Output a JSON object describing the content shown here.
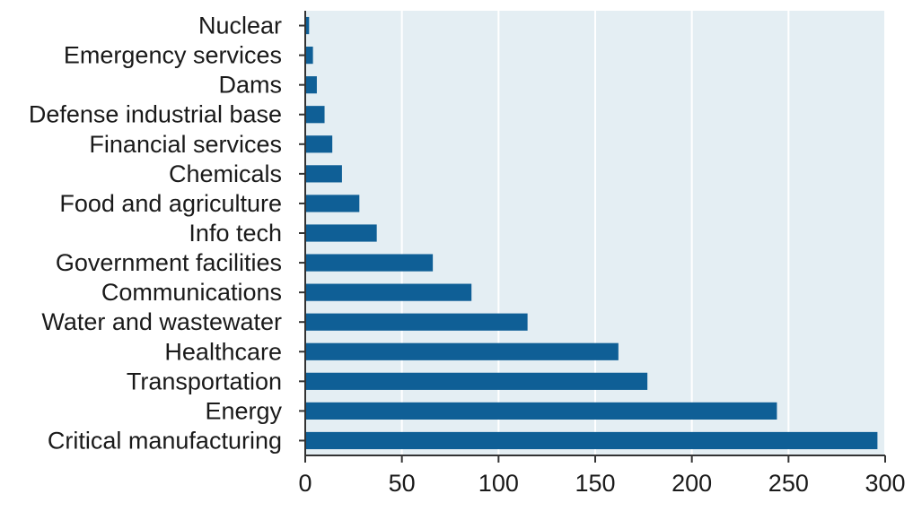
{
  "chart_data": {
    "type": "bar",
    "orientation": "horizontal",
    "categories": [
      "Nuclear",
      "Emergency services",
      "Dams",
      "Defense industrial base",
      "Financial services",
      "Chemicals",
      "Food and agriculture",
      "Info tech",
      "Government facilities",
      "Communications",
      "Water and wastewater",
      "Healthcare",
      "Transportation",
      "Energy",
      "Critical manufacturing"
    ],
    "values": [
      2,
      4,
      6,
      10,
      14,
      19,
      28,
      37,
      66,
      86,
      115,
      162,
      177,
      244,
      296
    ],
    "xlim": [
      0,
      300
    ],
    "xticks": [
      "0",
      "50",
      "100",
      "150",
      "200",
      "250",
      "300"
    ],
    "title": "",
    "xlabel": "",
    "ylabel": "",
    "grid": "vertical",
    "legend": "none",
    "colors": {
      "bar": "#0f5f96",
      "plot_background": "#e4eef3",
      "gridline": "#ffffff"
    }
  }
}
